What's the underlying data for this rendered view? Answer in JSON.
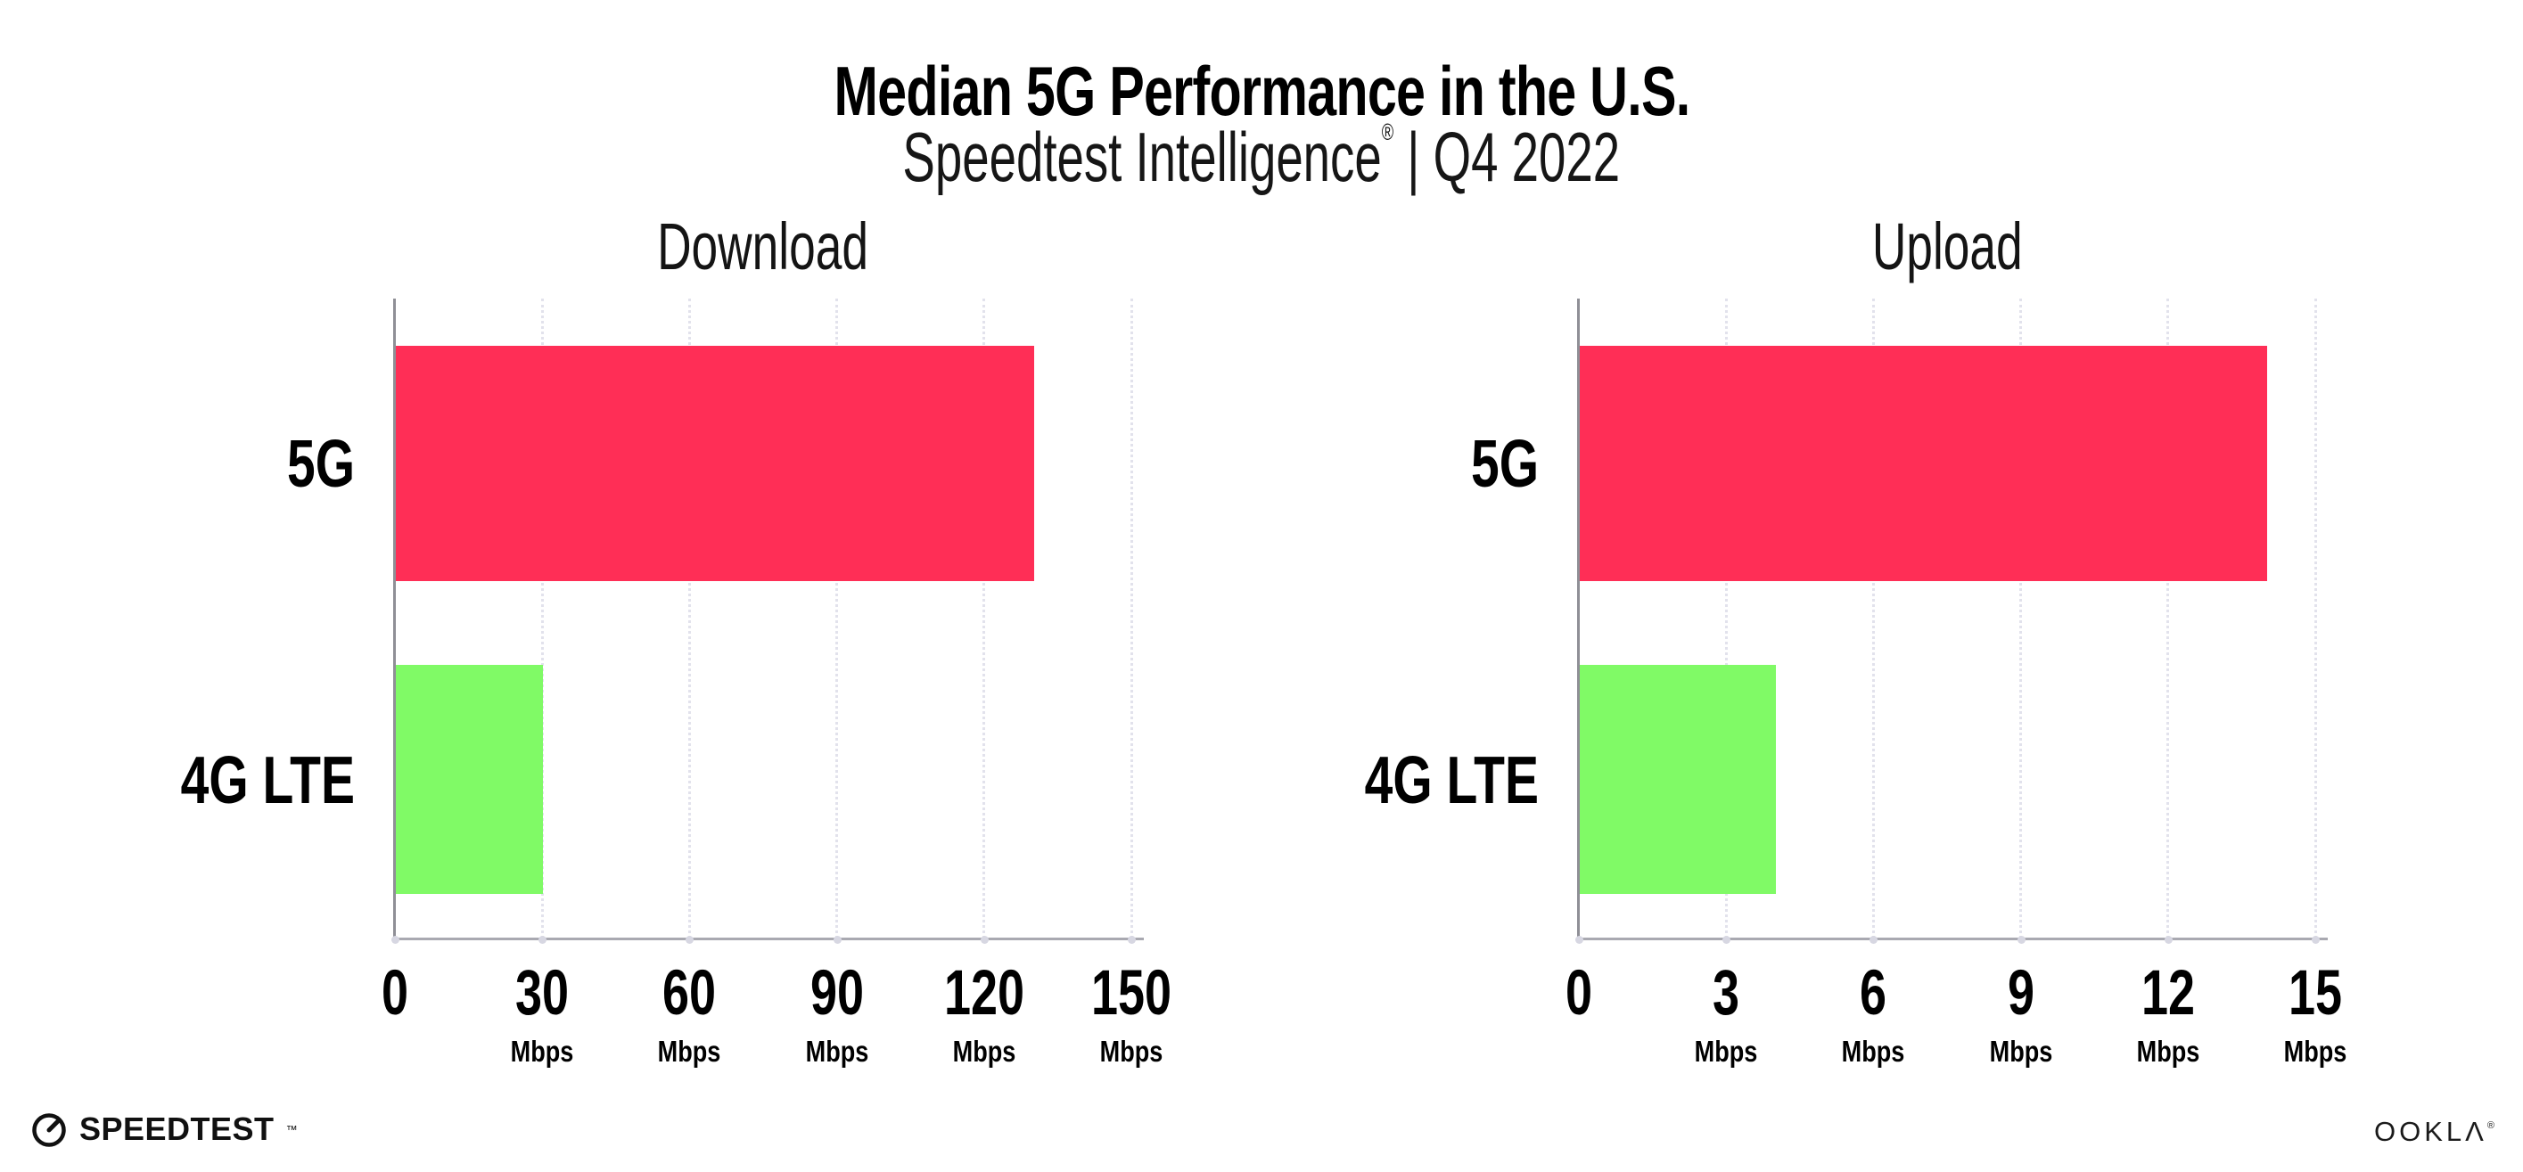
{
  "header": {
    "title": "Median 5G Performance in the U.S.",
    "subtitle_brand": "Speedtest Intelligence",
    "subtitle_reg": "®",
    "subtitle_sep": " | ",
    "subtitle_period": "Q4 2022"
  },
  "footer": {
    "speedtest_label": "SPEEDTEST",
    "speedtest_tm": "™",
    "ookla_label": "OOKLΛ",
    "ookla_reg": "®"
  },
  "colors": {
    "bar_5g": "#FF2E56",
    "bar_4g_lte": "#80FA66",
    "grid_dots": "#e2e2ec",
    "x_axis_line": "#a9a9b1",
    "y_axis_line": "#8f8f96"
  },
  "chart_data": [
    {
      "type": "bar",
      "orientation": "horizontal",
      "title": "Download",
      "categories": [
        "5G",
        "4G LTE"
      ],
      "values": [
        130,
        30
      ],
      "unit": "Mbps",
      "xlim": [
        0,
        150
      ],
      "xticks": [
        0,
        30,
        60,
        90,
        120,
        150
      ],
      "grid": "dotted-vertical",
      "legend": "none"
    },
    {
      "type": "bar",
      "orientation": "horizontal",
      "title": "Upload",
      "categories": [
        "5G",
        "4G LTE"
      ],
      "values": [
        14,
        4
      ],
      "unit": "Mbps",
      "xlim": [
        0,
        15
      ],
      "xticks": [
        0,
        3,
        6,
        9,
        12,
        15
      ],
      "grid": "dotted-vertical",
      "legend": "none"
    }
  ]
}
